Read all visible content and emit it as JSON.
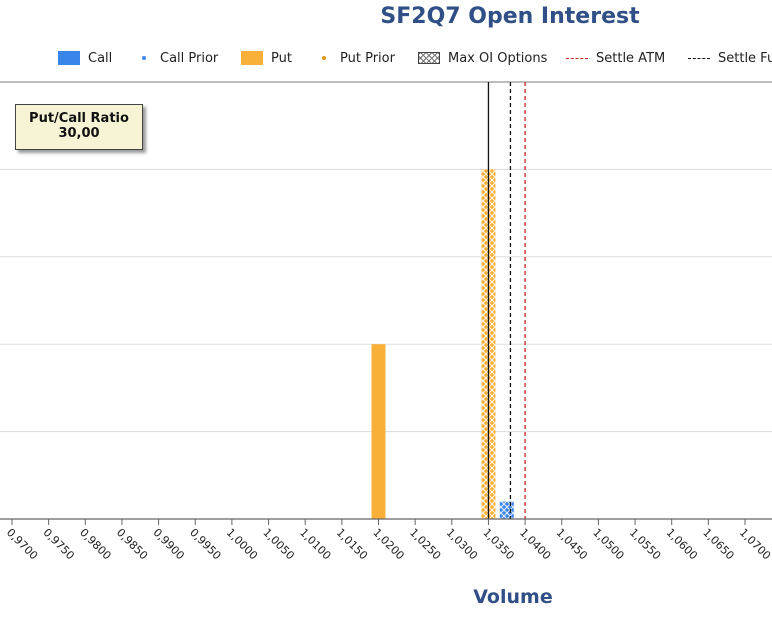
{
  "chart_data": {
    "type": "bar",
    "title": "SF2Q7 Open Interest",
    "xlabel": "Volume",
    "ylabel": "",
    "x_ticks": [
      "0,9700",
      "0,9750",
      "0,9800",
      "0,9850",
      "0,9900",
      "0,9950",
      "1,0000",
      "1,0050",
      "1,0100",
      "1,0150",
      "1,0200",
      "1,0250",
      "1,0300",
      "1,0350",
      "1,0400",
      "1,0450",
      "1,0500",
      "1,0550",
      "1,0600",
      "1,0650",
      "1,0700"
    ],
    "x_range": [
      0.97,
      1.07
    ],
    "ylim": [
      0,
      50
    ],
    "grid": true,
    "legend": [
      {
        "label": "Call",
        "kind": "box",
        "color": "#3a86e8"
      },
      {
        "label": "Call Prior",
        "kind": "dot",
        "color": "#3a86e8"
      },
      {
        "label": "Put",
        "kind": "box",
        "color": "#f9b038"
      },
      {
        "label": "Put Prior",
        "kind": "dot",
        "color": "#e3921a"
      },
      {
        "label": "Max OI Options",
        "kind": "hatch",
        "color": "#555555"
      },
      {
        "label": "Settle ATM",
        "kind": "dash",
        "color": "#cc2222"
      },
      {
        "label": "Settle Fut",
        "kind": "dash",
        "color": "#111111"
      }
    ],
    "series": [
      {
        "name": "Call",
        "color": "#3a86e8",
        "points": [
          {
            "x": 1.0375,
            "y": 2,
            "max_oi": true
          }
        ]
      },
      {
        "name": "Put",
        "color": "#f9b038",
        "points": [
          {
            "x": 1.02,
            "y": 20,
            "max_oi": false
          },
          {
            "x": 1.035,
            "y": 40,
            "max_oi": true
          }
        ]
      }
    ],
    "vertical_lines": [
      {
        "name": "Settle Fut",
        "x": 1.038,
        "style": "dashed",
        "color": "#111111"
      },
      {
        "name": "Settle ATM",
        "x": 1.04,
        "style": "dashed",
        "color": "#cc2222"
      },
      {
        "name": "Max OI",
        "x": 1.035,
        "style": "solid",
        "color": "#111111"
      }
    ],
    "annotation": {
      "label": "Put/Call Ratio",
      "value": "30,00"
    }
  }
}
